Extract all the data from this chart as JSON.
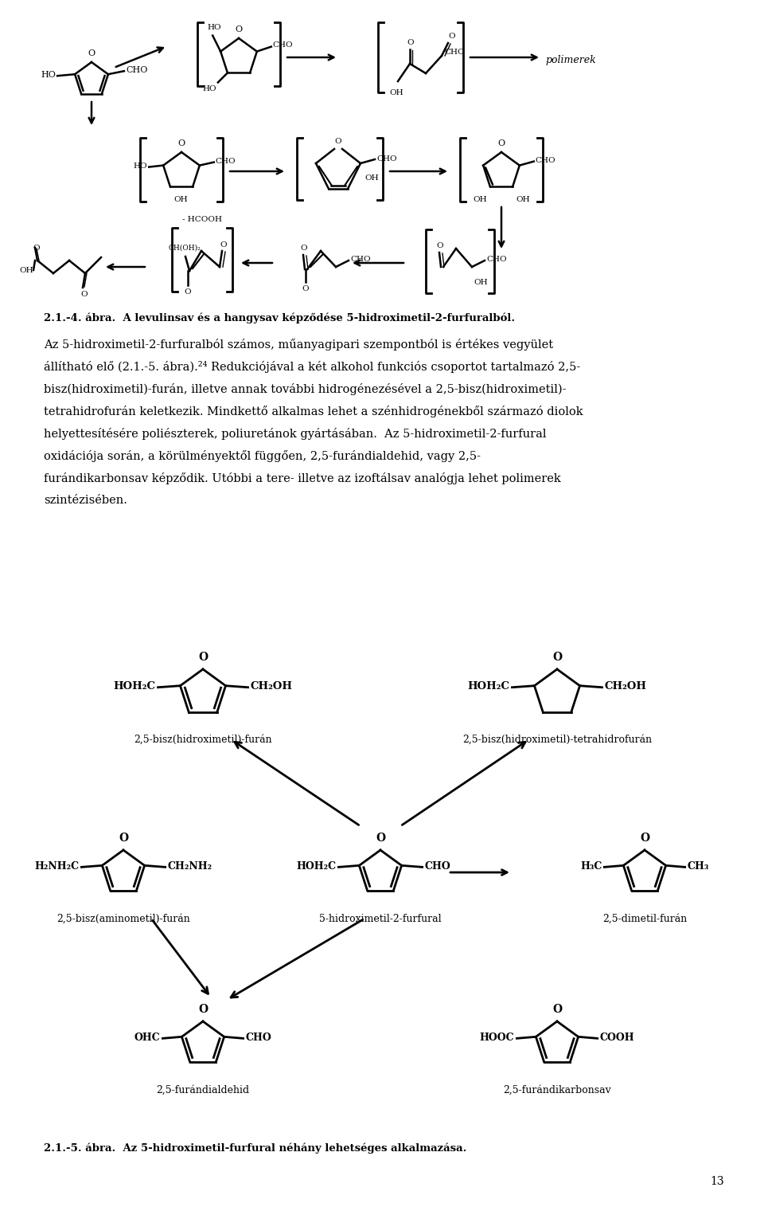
{
  "page_width": 9.6,
  "page_height": 15.15,
  "dpi": 100,
  "background": "#ffffff",
  "text_color": "#000000",
  "title_caption_1": "2.1.-4. ábra.  A levulinsav és a hangysav képződése 5-hidroximetil-2-furfuralból.",
  "label_bhmf": "2,5-bisz(hidroximetil)-furán",
  "label_bhmthf": "2,5-bisz(hidroximetil)-tetrahidrofurán",
  "label_bamf": "2,5-bisz(aminometil)-furán",
  "label_5hmf2f": "5-hidroximetil-2-furfural",
  "label_25dmf": "2,5-dimetil-furán",
  "label_25fda": "2,5-furándialdehid",
  "label_25fdca": "2,5-furándikarbonsav",
  "caption_2": "2.1.-5. ábra.  Az 5-hidroximetil-furfural néhány lehetséges alkalmazása.",
  "page_number": "13"
}
